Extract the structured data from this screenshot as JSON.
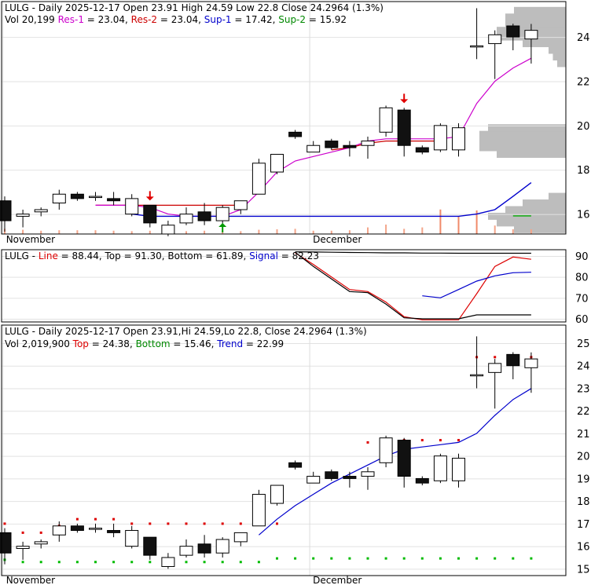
{
  "chart_data": [
    {
      "type": "candlestick",
      "name": "price-panel",
      "header_parts": [
        {
          "text": "LULG - Daily 2025-12-17 Open 23.91  High 24.59  Low 22.8  Close 24.2964 (1.3%)",
          "color": "#000000"
        }
      ],
      "subheader_parts": [
        {
          "text": "Vol 20,199 ",
          "color": "#000000"
        },
        {
          "text": "Res-1",
          "color": "#cc00cc"
        },
        {
          "text": " = 23.04, ",
          "color": "#000000"
        },
        {
          "text": "Res-2",
          "color": "#cc0000"
        },
        {
          "text": " = 23.04, ",
          "color": "#000000"
        },
        {
          "text": "Sup-1",
          "color": "#0000cc"
        },
        {
          "text": " = 17.42, ",
          "color": "#000000"
        },
        {
          "text": "Sup-2",
          "color": "#008800"
        },
        {
          "text": " = 15.92",
          "color": "#000000"
        }
      ],
      "y_ticks": [
        16,
        18,
        20,
        22,
        24
      ],
      "ylim": [
        15.1,
        25.6
      ],
      "x_labels": [
        {
          "text": "November",
          "index": -0.1
        },
        {
          "text": "December",
          "index": 16.8
        }
      ],
      "candles": [
        {
          "o": 16.6,
          "h": 16.8,
          "l": 15.2,
          "c": 15.7
        },
        {
          "o": 15.9,
          "h": 16.2,
          "l": 15.4,
          "c": 16.0
        },
        {
          "o": 16.1,
          "h": 16.3,
          "l": 15.9,
          "c": 16.2
        },
        {
          "o": 16.5,
          "h": 17.1,
          "l": 16.2,
          "c": 16.9
        },
        {
          "o": 16.9,
          "h": 17.0,
          "l": 16.6,
          "c": 16.7
        },
        {
          "o": 16.8,
          "h": 17.0,
          "l": 16.6,
          "c": 16.8
        },
        {
          "o": 16.7,
          "h": 17.0,
          "l": 16.4,
          "c": 16.6
        },
        {
          "o": 16.0,
          "h": 16.9,
          "l": 15.9,
          "c": 16.7
        },
        {
          "o": 16.4,
          "h": 16.4,
          "l": 15.4,
          "c": 15.6
        },
        {
          "o": 15.1,
          "h": 15.7,
          "l": 15.0,
          "c": 15.5
        },
        {
          "o": 15.6,
          "h": 16.3,
          "l": 15.5,
          "c": 16.0
        },
        {
          "o": 16.1,
          "h": 16.5,
          "l": 15.5,
          "c": 15.7
        },
        {
          "o": 15.7,
          "h": 16.4,
          "l": 15.5,
          "c": 16.3
        },
        {
          "o": 16.2,
          "h": 16.6,
          "l": 16.0,
          "c": 16.6
        },
        {
          "o": 16.9,
          "h": 18.5,
          "l": 16.9,
          "c": 18.3
        },
        {
          "o": 17.9,
          "h": 18.7,
          "l": 17.8,
          "c": 18.7
        },
        {
          "o": 19.7,
          "h": 19.8,
          "l": 19.4,
          "c": 19.5
        },
        {
          "o": 18.8,
          "h": 19.3,
          "l": 18.8,
          "c": 19.1
        },
        {
          "o": 19.3,
          "h": 19.4,
          "l": 18.9,
          "c": 19.0
        },
        {
          "o": 19.1,
          "h": 19.3,
          "l": 18.6,
          "c": 19.0
        },
        {
          "o": 19.1,
          "h": 19.5,
          "l": 18.5,
          "c": 19.3
        },
        {
          "o": 19.7,
          "h": 20.9,
          "l": 19.5,
          "c": 20.8
        },
        {
          "o": 20.7,
          "h": 20.8,
          "l": 18.6,
          "c": 19.1
        },
        {
          "o": 19.0,
          "h": 19.1,
          "l": 18.7,
          "c": 18.8
        },
        {
          "o": 18.9,
          "h": 20.1,
          "l": 18.8,
          "c": 20.0
        },
        {
          "o": 18.9,
          "h": 20.1,
          "l": 18.6,
          "c": 19.9
        },
        {
          "o": 23.6,
          "h": 25.3,
          "l": 23.0,
          "c": 23.6
        },
        {
          "o": 23.7,
          "h": 24.3,
          "l": 22.1,
          "c": 24.1
        },
        {
          "o": 24.5,
          "h": 24.6,
          "l": 23.4,
          "c": 24.0
        },
        {
          "o": 23.91,
          "h": 24.59,
          "l": 22.8,
          "c": 24.3
        }
      ],
      "volume_rel": [
        0.55,
        0.45,
        0.35,
        0.4,
        0.4,
        0.4,
        0.35,
        0.3,
        0.35,
        0.35,
        0.3,
        0.35,
        0.3,
        0.3,
        0.45,
        0.5,
        0.55,
        0.35,
        0.35,
        0.4,
        0.7,
        1.0,
        0.55,
        0.7,
        2.6,
        1.9,
        2.5,
        0.9,
        0.5,
        0.5
      ],
      "volume_colors_bright": [
        24,
        25,
        26
      ],
      "overlay_res1": [
        null,
        null,
        null,
        null,
        null,
        16.4,
        16.4,
        16.4,
        16.3,
        16.0,
        15.9,
        15.9,
        15.9,
        16.2,
        17.0,
        17.9,
        18.4,
        18.6,
        18.8,
        19.0,
        19.3,
        19.4,
        19.4,
        19.4,
        19.4,
        19.5,
        21.0,
        22.0,
        22.6,
        23.04
      ],
      "overlay_res2": [
        null,
        null,
        null,
        null,
        null,
        16.4,
        16.4,
        16.4,
        16.4,
        16.4,
        16.4,
        16.4,
        16.4,
        16.4,
        null,
        null,
        null,
        null,
        18.9,
        19.0,
        19.2,
        19.3,
        19.3,
        19.3,
        19.3,
        null,
        null,
        null,
        null,
        null
      ],
      "overlay_sup1": [
        null,
        null,
        null,
        null,
        null,
        null,
        null,
        16.0,
        15.9,
        15.9,
        15.9,
        15.9,
        15.9,
        15.9,
        15.9,
        15.9,
        15.9,
        15.9,
        15.9,
        15.9,
        15.9,
        15.9,
        15.9,
        15.9,
        15.9,
        15.9,
        16.0,
        16.2,
        16.8,
        17.42
      ],
      "overlay_sup2": [
        null,
        null,
        null,
        null,
        null,
        null,
        null,
        null,
        null,
        null,
        null,
        null,
        null,
        null,
        null,
        null,
        null,
        null,
        null,
        null,
        null,
        null,
        null,
        null,
        null,
        null,
        null,
        null,
        15.92,
        15.92
      ],
      "arrows": [
        {
          "index": 8,
          "dir": "down",
          "color": "#e00000"
        },
        {
          "index": 12,
          "dir": "up",
          "color": "#009900"
        },
        {
          "index": 22,
          "dir": "down",
          "color": "#e00000"
        }
      ],
      "volume_profile": [
        {
          "price": 15.3,
          "w": 0.6
        },
        {
          "price": 15.6,
          "w": 0.8
        },
        {
          "price": 15.9,
          "w": 0.9
        },
        {
          "price": 16.2,
          "w": 0.7
        },
        {
          "price": 16.5,
          "w": 0.5
        },
        {
          "price": 16.8,
          "w": 0.2
        },
        {
          "price": 18.7,
          "w": 0.8
        },
        {
          "price": 19.0,
          "w": 1.0
        },
        {
          "price": 19.3,
          "w": 1.0
        },
        {
          "price": 19.6,
          "w": 1.0
        },
        {
          "price": 19.9,
          "w": 0.9
        },
        {
          "price": 22.8,
          "w": 0.1
        },
        {
          "price": 23.1,
          "w": 0.15
        },
        {
          "price": 23.4,
          "w": 0.2
        },
        {
          "price": 23.7,
          "w": 0.5
        },
        {
          "price": 24.0,
          "w": 0.8
        },
        {
          "price": 24.3,
          "w": 0.8
        },
        {
          "price": 24.6,
          "w": 0.7
        },
        {
          "price": 24.9,
          "w": 0.7
        },
        {
          "price": 25.2,
          "w": 0.6
        }
      ]
    },
    {
      "type": "line",
      "name": "oscillator-panel",
      "header_parts": [
        {
          "text": "LULG - ",
          "color": "#000000"
        },
        {
          "text": "Line",
          "color": "#dd0000"
        },
        {
          "text": " = 88.44, Top = 91.30, Bottom = 61.89, ",
          "color": "#000000"
        },
        {
          "text": "Signal",
          "color": "#0000cc"
        },
        {
          "text": " = 82.23",
          "color": "#000000"
        }
      ],
      "y_ticks": [
        60,
        70,
        80,
        90
      ],
      "ylim": [
        58.5,
        93
      ],
      "series": [
        {
          "color": "#dd0000",
          "values": [
            null,
            null,
            null,
            null,
            null,
            null,
            null,
            null,
            null,
            null,
            null,
            null,
            null,
            null,
            null,
            null,
            91.5,
            86.0,
            80.0,
            74.0,
            73.0,
            68.0,
            61.0,
            59.5,
            59.5,
            59.5,
            72.0,
            85.0,
            89.5,
            88.44
          ]
        },
        {
          "color": "#0000cc",
          "values": [
            null,
            null,
            null,
            null,
            null,
            null,
            null,
            null,
            null,
            null,
            null,
            null,
            null,
            null,
            null,
            null,
            null,
            null,
            null,
            null,
            null,
            null,
            null,
            71.0,
            70.0,
            74.0,
            78.0,
            80.5,
            82.0,
            82.23
          ]
        },
        {
          "color": "#000000",
          "values": [
            null,
            null,
            null,
            null,
            null,
            null,
            null,
            null,
            null,
            null,
            null,
            null,
            null,
            null,
            null,
            null,
            91.8,
            85.0,
            79.0,
            73.0,
            72.5,
            67.0,
            60.5,
            60.0,
            60.0,
            60.0,
            61.89,
            61.89,
            61.89,
            61.89
          ]
        },
        {
          "color": "#000000",
          "values": [
            null,
            null,
            null,
            null,
            null,
            null,
            null,
            null,
            null,
            null,
            null,
            null,
            null,
            null,
            null,
            null,
            92.0,
            91.9,
            91.8,
            91.7,
            91.6,
            91.5,
            91.5,
            91.4,
            91.4,
            91.3,
            91.3,
            91.3,
            91.3,
            91.3
          ]
        }
      ]
    },
    {
      "type": "candlestick",
      "name": "trend-panel",
      "header_parts": [
        {
          "text": "LULG - Daily 2025-12-17 Open 23.91,Hi 24.59,Lo 22.8, Close 24.2964 (1.3%)",
          "color": "#000000"
        }
      ],
      "subheader_parts": [
        {
          "text": "Vol 2,019,900 ",
          "color": "#000000"
        },
        {
          "text": "Top",
          "color": "#dd0000"
        },
        {
          "text": " = 24.38, ",
          "color": "#000000"
        },
        {
          "text": "Bottom",
          "color": "#008800"
        },
        {
          "text": " = 15.46, ",
          "color": "#000000"
        },
        {
          "text": "Trend",
          "color": "#0000cc"
        },
        {
          "text": " = 22.99",
          "color": "#000000"
        }
      ],
      "y_ticks": [
        15,
        16,
        17,
        18,
        19,
        20,
        21,
        22,
        23,
        24,
        25
      ],
      "ylim": [
        14.7,
        25.8
      ],
      "x_labels": [
        {
          "text": "November",
          "index": -0.1
        },
        {
          "text": "December",
          "index": 16.8
        }
      ],
      "trend": [
        null,
        null,
        null,
        null,
        null,
        null,
        null,
        null,
        null,
        null,
        null,
        null,
        null,
        null,
        16.5,
        17.2,
        17.8,
        18.3,
        18.8,
        19.2,
        19.6,
        20.0,
        20.3,
        20.4,
        20.5,
        20.6,
        21.0,
        21.8,
        22.5,
        22.99
      ],
      "top_dots": [
        17.0,
        16.6,
        16.6,
        16.9,
        17.2,
        17.2,
        17.2,
        17.0,
        17.0,
        17.0,
        17.0,
        17.0,
        17.0,
        17.0,
        17.0,
        17.0,
        null,
        null,
        null,
        null,
        20.6,
        20.7,
        20.7,
        20.7,
        20.7,
        20.7,
        24.38,
        24.38,
        24.38,
        24.38
      ],
      "bottom_dots": [
        15.4,
        15.3,
        15.3,
        15.3,
        15.3,
        15.3,
        15.3,
        15.3,
        15.3,
        15.3,
        15.3,
        15.3,
        15.3,
        15.3,
        15.3,
        15.46,
        15.46,
        15.46,
        15.46,
        15.46,
        15.46,
        15.46,
        15.46,
        15.46,
        15.46,
        15.46,
        15.46,
        15.46,
        15.46,
        15.46
      ]
    }
  ]
}
